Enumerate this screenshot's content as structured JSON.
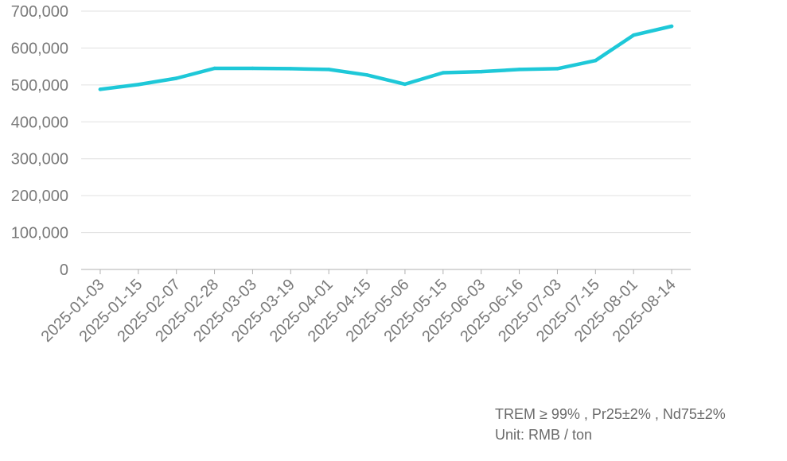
{
  "chart_data": {
    "type": "line",
    "title": "",
    "xlabel": "",
    "ylabel": "",
    "x": [
      "2025-01-03",
      "2025-01-15",
      "2025-02-07",
      "2025-02-28",
      "2025-03-03",
      "2025-03-19",
      "2025-04-01",
      "2025-04-15",
      "2025-05-06",
      "2025-05-15",
      "2025-06-03",
      "2025-06-16",
      "2025-07-03",
      "2025-07-15",
      "2025-08-01",
      "2025-08-14"
    ],
    "series": [
      {
        "values": [
          488000,
          501000,
          518000,
          545000,
          545000,
          544000,
          542000,
          527000,
          502000,
          533000,
          536000,
          542000,
          544000,
          566000,
          635000,
          659000
        ],
        "color": "#1ec8d8"
      }
    ],
    "ylim": [
      0,
      700000
    ],
    "yticks": [
      0,
      100000,
      200000,
      300000,
      400000,
      500000,
      600000,
      700000
    ],
    "ytick_labels": [
      "0",
      "100,000",
      "200,000",
      "300,000",
      "400,000",
      "500,000",
      "600,000",
      "700,000"
    ],
    "grid": true,
    "legend": "none",
    "gridline_color": "#e0e0e0",
    "axis_color": "#b0b0b0"
  },
  "notes": {
    "spec": "TREM ≥ 99% , Pr25±2% , Nd75±2%",
    "unit": "Unit: RMB / ton"
  }
}
